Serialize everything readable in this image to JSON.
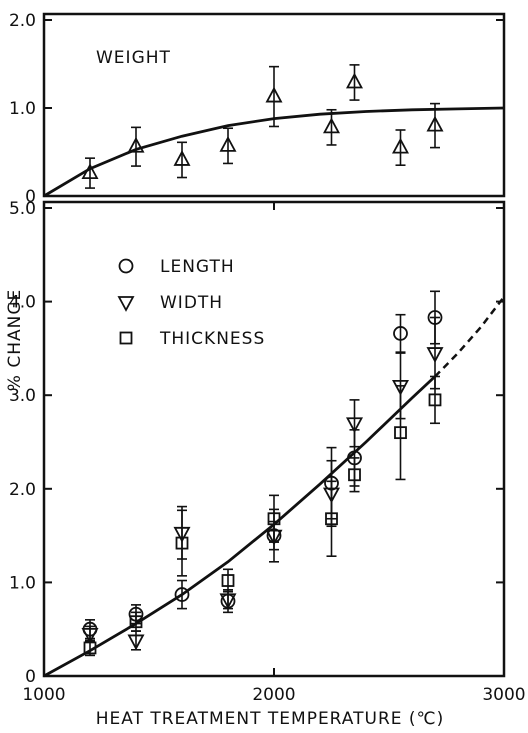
{
  "chart_data": [
    {
      "type": "scatter",
      "title": "",
      "panel_label": "WEIGHT",
      "xlim": [
        1000,
        3000
      ],
      "ylim": [
        0,
        2.0
      ],
      "y_ticks": [
        "0",
        "1.0",
        "2.0"
      ],
      "series": [
        {
          "name": "WEIGHT",
          "marker": "triangle-up",
          "points": [
            {
              "x": 1200,
              "y": 0.26,
              "err": 0.17
            },
            {
              "x": 1400,
              "y": 0.56,
              "err": 0.22
            },
            {
              "x": 1600,
              "y": 0.41,
              "err": 0.2
            },
            {
              "x": 1800,
              "y": 0.57,
              "err": 0.2
            },
            {
              "x": 2000,
              "y": 1.13,
              "err": 0.34
            },
            {
              "x": 2250,
              "y": 0.78,
              "err": 0.2
            },
            {
              "x": 2350,
              "y": 1.29,
              "err": 0.2
            },
            {
              "x": 2550,
              "y": 0.55,
              "err": 0.2
            },
            {
              "x": 2700,
              "y": 0.8,
              "err": 0.25
            }
          ]
        }
      ],
      "fit_curve": {
        "x": [
          1000,
          1200,
          1400,
          1600,
          1800,
          2000,
          2200,
          2400,
          2600,
          2800,
          3000
        ],
        "y": [
          0.0,
          0.31,
          0.53,
          0.68,
          0.8,
          0.88,
          0.93,
          0.96,
          0.98,
          0.99,
          1.0
        ]
      }
    },
    {
      "type": "scatter",
      "title": "",
      "xlabel": "HEAT TREATMENT TEMPERATURE (℃)",
      "ylabel": "% CHANGE",
      "xlim": [
        1000,
        3000
      ],
      "ylim": [
        0,
        5.0
      ],
      "x_ticks": [
        "1000",
        "2000",
        "3000"
      ],
      "y_ticks": [
        "0",
        "1.0",
        "2.0",
        "3.0",
        "4.0",
        "5.0"
      ],
      "legend_position": "top-left",
      "series": [
        {
          "name": "LENGTH",
          "marker": "circle",
          "points": [
            {
              "x": 1200,
              "y": 0.5,
              "err": 0.1
            },
            {
              "x": 1400,
              "y": 0.66,
              "err": 0.1
            },
            {
              "x": 1600,
              "y": 0.87,
              "err": 0.15
            },
            {
              "x": 1800,
              "y": 0.8,
              "err": 0.12
            },
            {
              "x": 2000,
              "y": 1.5,
              "err": 0.28
            },
            {
              "x": 2250,
              "y": 2.06,
              "err": 0.38
            },
            {
              "x": 2350,
              "y": 2.33,
              "err": 0.3
            },
            {
              "x": 2550,
              "y": 3.66,
              "err": 0.2
            },
            {
              "x": 2700,
              "y": 3.83,
              "err": 0.28
            }
          ]
        },
        {
          "name": "WIDTH",
          "marker": "triangle-down",
          "points": [
            {
              "x": 1200,
              "y": 0.45,
              "err": 0.08
            },
            {
              "x": 1400,
              "y": 0.38,
              "err": 0.1
            },
            {
              "x": 1600,
              "y": 1.53,
              "err": 0.28
            },
            {
              "x": 1800,
              "y": 0.82,
              "err": 0.1
            },
            {
              "x": 2000,
              "y": 1.5,
              "err": 0.15
            },
            {
              "x": 2250,
              "y": 1.95,
              "err": 0.35
            },
            {
              "x": 2350,
              "y": 2.7,
              "err": 0.25
            },
            {
              "x": 2550,
              "y": 3.1,
              "err": 0.35
            },
            {
              "x": 2700,
              "y": 3.45,
              "err": 0.38
            }
          ]
        },
        {
          "name": "THICKNESS",
          "marker": "square",
          "points": [
            {
              "x": 1200,
              "y": 0.3,
              "err": 0.08
            },
            {
              "x": 1400,
              "y": 0.58,
              "err": 0.1
            },
            {
              "x": 1600,
              "y": 1.42,
              "err": 0.35
            },
            {
              "x": 1800,
              "y": 1.02,
              "err": 0.12
            },
            {
              "x": 2000,
              "y": 1.68,
              "err": 0.25
            },
            {
              "x": 2250,
              "y": 1.68,
              "err": 0.4
            },
            {
              "x": 2350,
              "y": 2.15,
              "err": 0.18
            },
            {
              "x": 2550,
              "y": 2.6,
              "err": 0.5
            },
            {
              "x": 2700,
              "y": 2.95,
              "err": 0.25
            }
          ]
        }
      ],
      "fit_curve": {
        "x": [
          1000,
          1200,
          1400,
          1600,
          1800,
          2000,
          2200,
          2400,
          2600,
          2700
        ],
        "y": [
          0.0,
          0.27,
          0.56,
          0.87,
          1.22,
          1.62,
          2.05,
          2.5,
          2.97,
          3.2
        ]
      },
      "fit_curve_extrapolated": {
        "x": [
          2700,
          2800,
          2900,
          3000
        ],
        "y": [
          3.2,
          3.45,
          3.73,
          4.05
        ]
      }
    }
  ]
}
